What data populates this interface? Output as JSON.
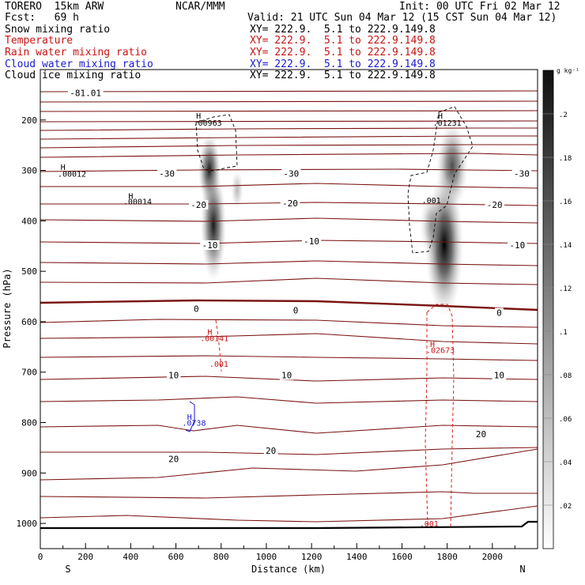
{
  "header": {
    "model": "TORERO  15km ARW",
    "org": "NCAR/MMM",
    "init": "Init: 00 UTC Fri 02 Mar 12",
    "fcst": "Fcst:   69 h",
    "valid": "Valid: 21 UTC Sun 04 Mar 12 (15 CST Sun 04 Mar 12)"
  },
  "legend": [
    {
      "label": "Snow mixing ratio",
      "xy": "XY= 222.9.  5.1 to 222.9.149.8",
      "color": "#000000"
    },
    {
      "label": "Temperature",
      "xy": "XY= 222.9.  5.1 to 222.9.149.8",
      "color": "#c81414"
    },
    {
      "label": "Rain water mixing ratio",
      "xy": "XY= 222.9.  5.1 to 222.9.149.8",
      "color": "#c81414"
    },
    {
      "label": "Cloud water mixing ratio",
      "xy": "XY= 222.9.  5.1 to 222.9.149.8",
      "color": "#1a1ad0"
    },
    {
      "label": "Cloud ice mixing ratio",
      "xy": "XY= 222.9.  5.1 to 222.9.149.8",
      "color": "#000000"
    }
  ],
  "chart_data": {
    "type": "cross-section",
    "xlabel": "Distance (km)",
    "ylabel": "Pressure (hPa)",
    "xlim": [
      0,
      2200
    ],
    "ylim": [
      1050,
      100
    ],
    "x_ticks": [
      0,
      200,
      400,
      600,
      800,
      1000,
      1200,
      1400,
      1600,
      1800,
      2000
    ],
    "y_ticks": [
      200,
      300,
      400,
      500,
      600,
      700,
      800,
      900,
      1000
    ],
    "x_ends": [
      "S",
      "N"
    ],
    "colorbar": {
      "unit": "g kg⁻¹",
      "ticks": [
        ".02",
        ".04",
        ".06",
        ".08",
        ".1",
        ".12",
        ".14",
        ".16",
        ".18",
        ".2"
      ]
    },
    "temperature_labels": [
      {
        "text": "-30",
        "x": 560,
        "p": 306
      },
      {
        "text": "-30",
        "x": 1110,
        "p": 306
      },
      {
        "text": "-30",
        "x": 2130,
        "p": 306
      },
      {
        "text": "-20",
        "x": 700,
        "p": 368
      },
      {
        "text": "-20",
        "x": 1105,
        "p": 365
      },
      {
        "text": "-20",
        "x": 2010,
        "p": 368
      },
      {
        "text": "-10",
        "x": 750,
        "p": 448
      },
      {
        "text": "-10",
        "x": 1200,
        "p": 440
      },
      {
        "text": "-10",
        "x": 2110,
        "p": 448
      },
      {
        "text": "0",
        "x": 690,
        "p": 574
      },
      {
        "text": "0",
        "x": 1130,
        "p": 577
      },
      {
        "text": "0",
        "x": 2030,
        "p": 582
      },
      {
        "text": "10",
        "x": 590,
        "p": 706
      },
      {
        "text": "10",
        "x": 1090,
        "p": 706
      },
      {
        "text": "10",
        "x": 2030,
        "p": 706
      },
      {
        "text": "20",
        "x": 590,
        "p": 872
      },
      {
        "text": "20",
        "x": 1020,
        "p": 856
      },
      {
        "text": "20",
        "x": 1950,
        "p": 823
      },
      {
        "text": "-81.01",
        "x": 200,
        "p": 146
      }
    ],
    "extrema": [
      {
        "text": "H",
        "x": 100,
        "p": 293,
        "color": "#000000"
      },
      {
        "text": ".00012",
        "x": 140,
        "p": 306,
        "color": "#000000"
      },
      {
        "text": "H",
        "x": 400,
        "p": 350,
        "color": "#000000"
      },
      {
        "text": ".00014",
        "x": 430,
        "p": 361,
        "color": "#000000"
      },
      {
        "text": "H",
        "x": 700,
        "p": 191,
        "color": "#000000"
      },
      {
        "text": ".00963",
        "x": 740,
        "p": 205,
        "color": "#000000"
      },
      {
        "text": "H",
        "x": 1770,
        "p": 191,
        "color": "#000000"
      },
      {
        "text": ".01231",
        "x": 1800,
        "p": 205,
        "color": "#000000"
      },
      {
        "text": ".001",
        "x": 1730,
        "p": 359,
        "color": "#000000"
      },
      {
        "text": "H",
        "x": 750,
        "p": 620,
        "color": "#c81414"
      },
      {
        "text": ".00141",
        "x": 770,
        "p": 632,
        "color": "#c81414"
      },
      {
        "text": ".001",
        "x": 790,
        "p": 683,
        "color": "#c81414"
      },
      {
        "text": "H",
        "x": 1735,
        "p": 644,
        "color": "#c81414"
      },
      {
        "text": ".02673",
        "x": 1770,
        "p": 656,
        "color": "#c81414"
      },
      {
        "text": ".001",
        "x": 1720,
        "p": 1000,
        "color": "#c81414"
      },
      {
        "text": "H",
        "x": 660,
        "p": 788,
        "color": "#1a1ad0"
      },
      {
        "text": ".0738",
        "x": 680,
        "p": 800,
        "color": "#1a1ad0"
      }
    ]
  }
}
